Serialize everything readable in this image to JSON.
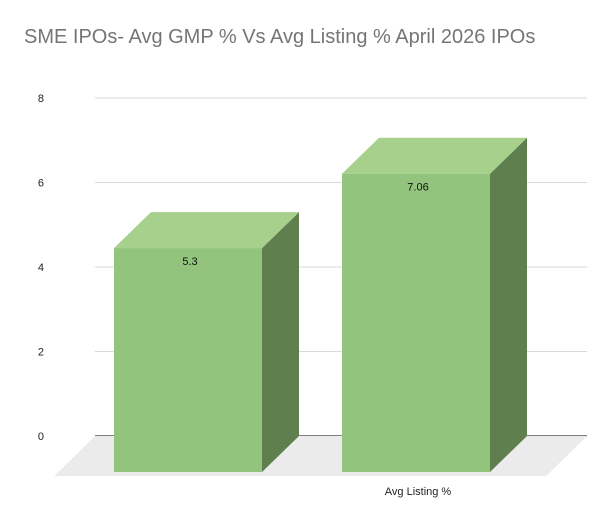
{
  "chart_data": {
    "type": "bar",
    "style": "3d",
    "title": "SME IPOs- Avg GMP % Vs Avg Listing % April 2026 IPOs",
    "categories": [
      "",
      "Avg Listing %"
    ],
    "values": [
      5.3,
      7.06
    ],
    "data_labels": [
      "5.3",
      "7.06"
    ],
    "ylim": [
      0,
      8
    ],
    "yticks": [
      0,
      2,
      4,
      6,
      8
    ],
    "grid": true,
    "legend": "none",
    "colors": {
      "front": "#93c47d",
      "top": "#a8d08d",
      "side": "#5f7f4e",
      "floor": "#ebebeb",
      "gridline": "#d9d9d9"
    }
  }
}
